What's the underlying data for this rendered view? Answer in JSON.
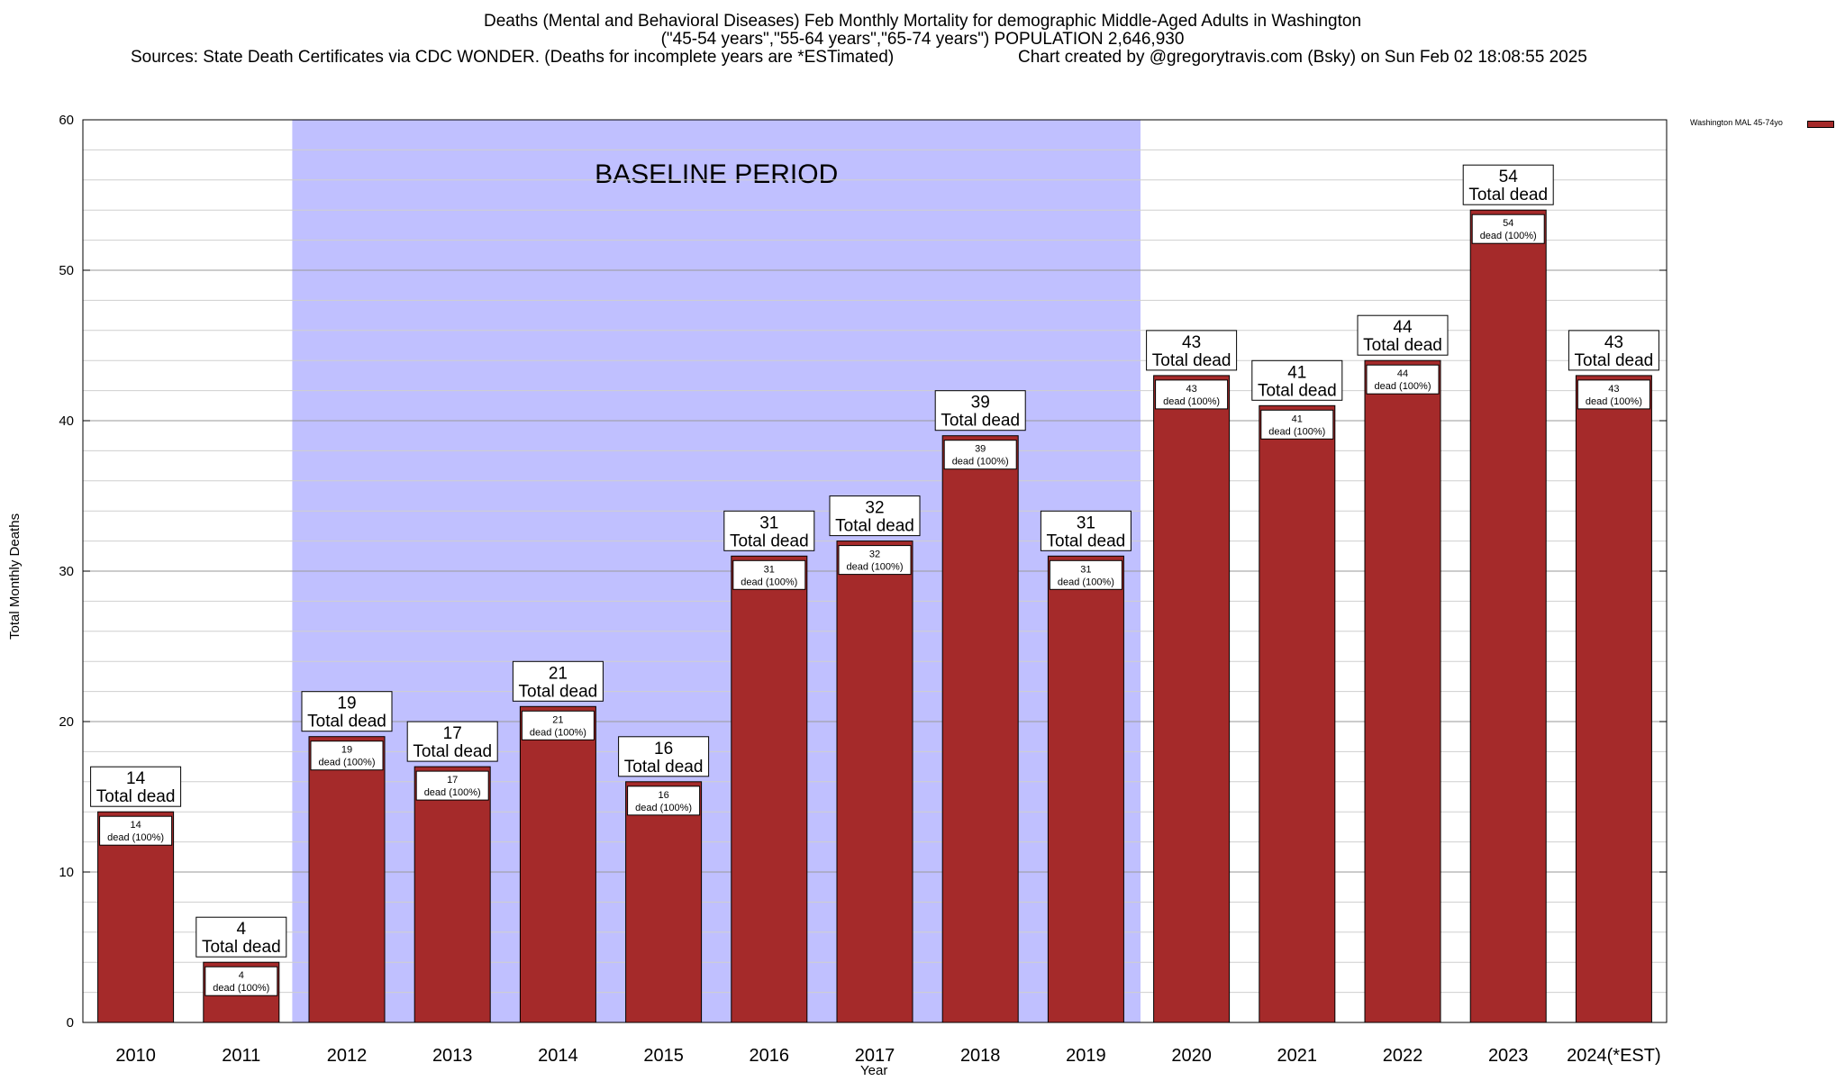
{
  "chart_data": {
    "type": "bar",
    "title_lines": [
      "Deaths (Mental and Behavioral Diseases) Feb Monthly Mortality for demographic Middle-Aged Adults in Washington",
      "(\"45-54 years\",\"55-64 years\",\"65-74 years\") POPULATION 2,646,930",
      "Sources: State Death Certificates via CDC WONDER. (Deaths for incomplete years are *ESTimated)",
      "Chart created by @gregorytravis.com (Bsky) on Sun Feb 02 18:08:55 2025"
    ],
    "xlabel": "Year",
    "ylabel": "Total Monthly Deaths",
    "ylim": [
      0,
      60
    ],
    "yticks": [
      0,
      10,
      20,
      30,
      40,
      50,
      60
    ],
    "minor_grid_step": 2,
    "grid": true,
    "categories": [
      "2010",
      "2011",
      "2012",
      "2013",
      "2014",
      "2015",
      "2016",
      "2017",
      "2018",
      "2019",
      "2020",
      "2021",
      "2022",
      "2023",
      "2024(*EST)"
    ],
    "series": [
      {
        "name": "Washington MAL 45-74yo",
        "color": "#a52a2a",
        "values": [
          14,
          4,
          19,
          17,
          21,
          16,
          31,
          32,
          39,
          31,
          43,
          41,
          44,
          54,
          43
        ]
      }
    ],
    "top_label_suffix": "Total dead",
    "inner_label_suffix": "dead (100%)",
    "baseline_band": {
      "label": "BASELINE PERIOD",
      "from_category": "2012",
      "to_category": "2019",
      "color": "#c0c0ff"
    },
    "legend_placement": "top-right"
  }
}
